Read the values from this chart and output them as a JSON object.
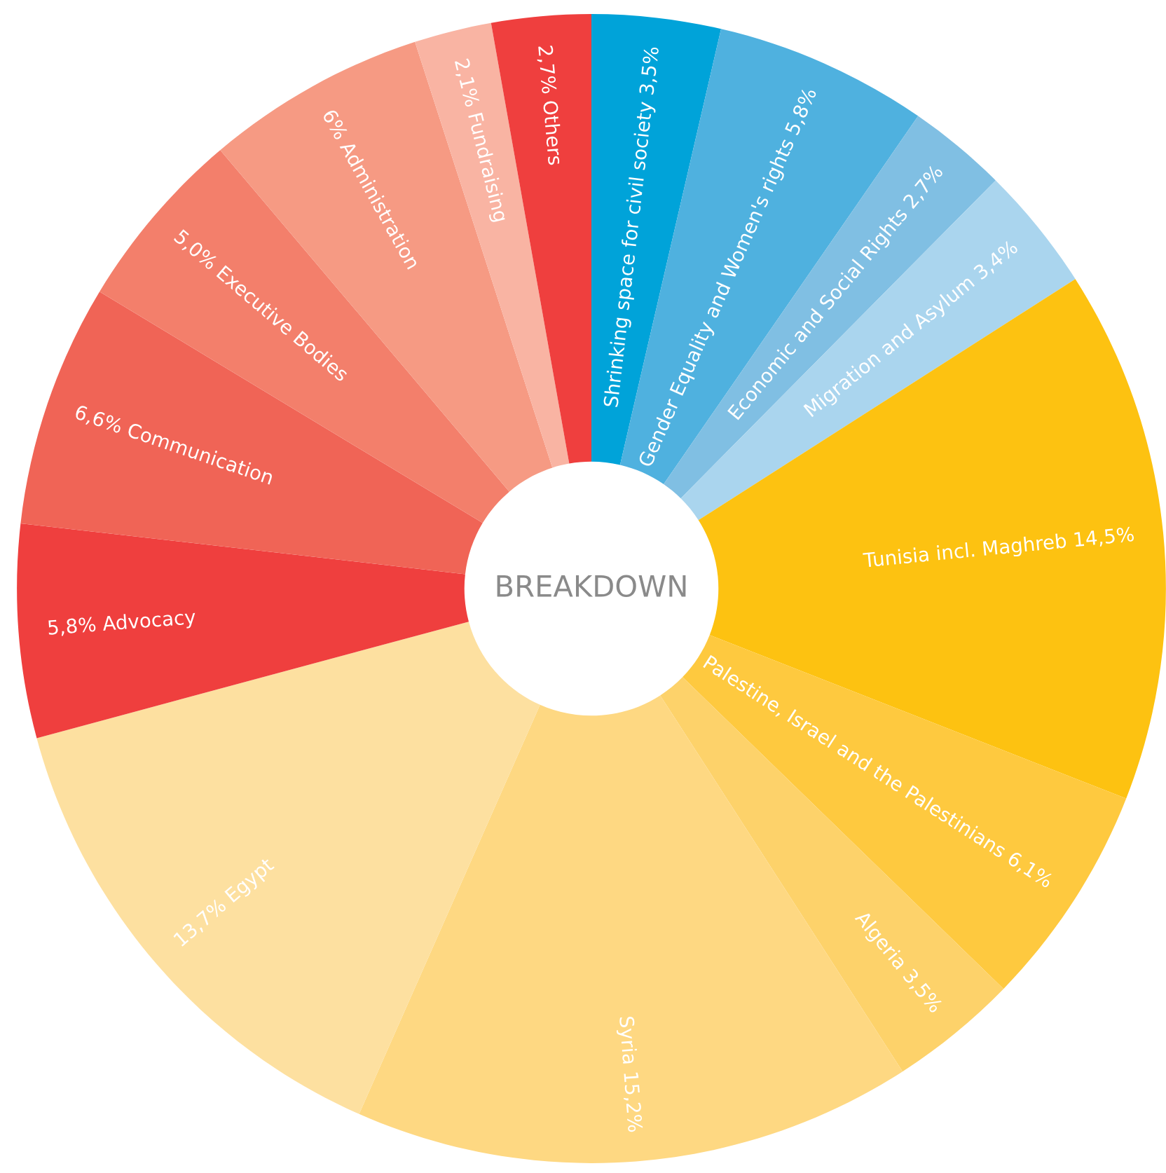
{
  "chart_data": {
    "type": "donut",
    "title": "BREAKDOWN",
    "categories": [
      "Shrinking space for civil society 3,5%",
      "Gender Equality and Women's rights 5,8%",
      "Economic and Social Rights 2,7%",
      "Migration and Asylum 3,4%",
      "Tunisia incl. Maghreb 14,5%",
      "Palestine, Israel and the Palestinians 6,1%",
      "Algeria 3,5%",
      "Syria 15,2%",
      "13,7% Egypt",
      "5,8% Advocacy",
      "6,6% Communication",
      "5,0% Executive Bodies",
      "6% Administration",
      "2,1% Fundraising",
      "2,7% Others"
    ],
    "values": [
      3.5,
      5.8,
      2.7,
      3.4,
      14.5,
      6.1,
      3.5,
      15.2,
      13.7,
      5.8,
      6.6,
      5.0,
      6,
      2.1,
      2.7
    ],
    "colors": [
      "#00a3d9",
      "#4fb1df",
      "#80bfe3",
      "#aad5ee",
      "#fdc211",
      "#fec93f",
      "#fdd26a",
      "#fed882",
      "#fde0a0",
      "#ef3f3e",
      "#f06456",
      "#f37f6b",
      "#f69a83",
      "#f9b4a3",
      "#ef3f3e"
    ]
  }
}
